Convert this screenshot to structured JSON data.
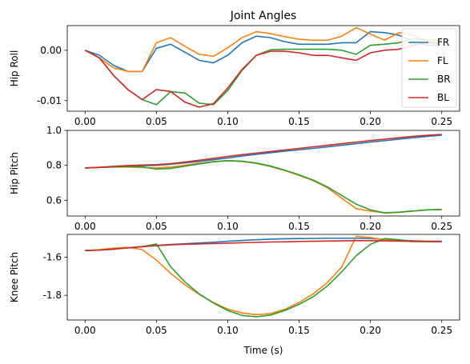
{
  "chart_data": {
    "type": "line",
    "title": "Joint Angles",
    "xlabel": "Time (s)",
    "legend": {
      "placement": "right",
      "entries": [
        "FR",
        "FL",
        "BR",
        "BL"
      ]
    },
    "colors": {
      "FR": "#1f77b4",
      "FL": "#ff7f0e",
      "BR": "#2ca02c",
      "BL": "#d62728"
    },
    "x": [
      0.0,
      0.01,
      0.02,
      0.03,
      0.04,
      0.05,
      0.06,
      0.07,
      0.08,
      0.09,
      0.1,
      0.11,
      0.12,
      0.13,
      0.14,
      0.15,
      0.16,
      0.17,
      0.18,
      0.19,
      0.2,
      0.21,
      0.22,
      0.23,
      0.24,
      0.25
    ],
    "xlim": [
      -0.0125,
      0.2625
    ],
    "xticks": [
      0.0,
      0.05,
      0.1,
      0.15,
      0.2,
      0.25
    ],
    "xtick_labels": [
      "0.00",
      "0.05",
      "0.10",
      "0.15",
      "0.20",
      "0.25"
    ],
    "subplots": [
      {
        "ylabel": "Hip Roll",
        "ylim": [
          -0.0121,
          0.0049
        ],
        "yticks": [
          -0.01,
          0.0
        ],
        "ytick_labels": [
          "-0.01",
          "0.00"
        ],
        "show_legend": true,
        "series": [
          {
            "name": "FR",
            "values": [
              0.0,
              -0.001,
              -0.003,
              -0.0042,
              -0.0042,
              0.0004,
              0.0012,
              -0.0004,
              -0.002,
              -0.0025,
              -0.001,
              0.0015,
              0.0028,
              0.0025,
              0.0017,
              0.0012,
              0.0012,
              0.0012,
              0.0015,
              0.0015,
              0.0037,
              0.0035,
              0.003,
              0.0018,
              0.001,
              0.001
            ]
          },
          {
            "name": "FL",
            "values": [
              0.0,
              -0.0015,
              -0.0035,
              -0.0042,
              -0.0042,
              0.0015,
              0.0025,
              0.0008,
              -0.0008,
              -0.0012,
              0.0005,
              0.0025,
              0.0037,
              0.0033,
              0.0027,
              0.0022,
              0.002,
              0.002,
              0.0028,
              0.0045,
              0.0032,
              0.002,
              0.0035,
              0.003,
              0.0018,
              0.001
            ]
          },
          {
            "name": "BR",
            "values": [
              0.0,
              -0.0015,
              -0.005,
              -0.0078,
              -0.0098,
              -0.0108,
              -0.0082,
              -0.0085,
              -0.0105,
              -0.0108,
              -0.008,
              -0.004,
              -0.001,
              0.0001,
              0.0002,
              0.0002,
              0.0002,
              0.0002,
              0.0,
              -0.0008,
              0.001,
              0.0012,
              0.0015,
              0.0023,
              0.002,
              0.002
            ]
          },
          {
            "name": "BL",
            "values": [
              0.0,
              -0.0015,
              -0.005,
              -0.0078,
              -0.0098,
              -0.0078,
              -0.0082,
              -0.0103,
              -0.0113,
              -0.0106,
              -0.0075,
              -0.0038,
              -0.001,
              -0.0002,
              -0.0002,
              -0.0005,
              -0.001,
              -0.001,
              -0.0015,
              -0.002,
              -0.0005,
              0.0,
              0.0002,
              0.001,
              0.0015,
              0.0015
            ]
          }
        ]
      },
      {
        "ylabel": "Hip Pitch",
        "ylim": [
          0.51,
          1.0
        ],
        "yticks": [
          0.6,
          0.8,
          1.0
        ],
        "ytick_labels": [
          "0.6",
          "0.8",
          "1.0"
        ],
        "show_legend": false,
        "series": [
          {
            "name": "FR",
            "values": [
              0.785,
              0.788,
              0.792,
              0.796,
              0.798,
              0.8,
              0.806,
              0.814,
              0.822,
              0.832,
              0.842,
              0.853,
              0.863,
              0.872,
              0.881,
              0.889,
              0.897,
              0.906,
              0.915,
              0.924,
              0.933,
              0.941,
              0.95,
              0.958,
              0.966,
              0.973
            ]
          },
          {
            "name": "FL",
            "values": [
              0.785,
              0.788,
              0.791,
              0.79,
              0.787,
              0.785,
              0.79,
              0.801,
              0.812,
              0.822,
              0.827,
              0.822,
              0.811,
              0.793,
              0.77,
              0.743,
              0.712,
              0.671,
              0.611,
              0.552,
              0.538,
              0.528,
              0.531,
              0.538,
              0.545,
              0.547
            ]
          },
          {
            "name": "BR",
            "values": [
              0.785,
              0.788,
              0.791,
              0.793,
              0.792,
              0.778,
              0.782,
              0.795,
              0.808,
              0.82,
              0.827,
              0.824,
              0.813,
              0.796,
              0.772,
              0.746,
              0.715,
              0.676,
              0.627,
              0.578,
              0.545,
              0.528,
              0.532,
              0.539,
              0.545,
              0.547
            ]
          },
          {
            "name": "BL",
            "values": [
              0.785,
              0.789,
              0.794,
              0.799,
              0.802,
              0.804,
              0.81,
              0.819,
              0.829,
              0.84,
              0.851,
              0.861,
              0.87,
              0.879,
              0.888,
              0.897,
              0.906,
              0.915,
              0.924,
              0.933,
              0.942,
              0.95,
              0.958,
              0.966,
              0.972,
              0.977
            ]
          }
        ]
      },
      {
        "ylabel": "Knee Pitch",
        "ylim": [
          -1.93,
          -1.48
        ],
        "yticks": [
          -1.8,
          -1.6
        ],
        "ytick_labels": [
          "-1.8",
          "-1.6"
        ],
        "show_legend": false,
        "series": [
          {
            "name": "FR",
            "values": [
              -1.565,
              -1.562,
              -1.556,
              -1.55,
              -1.544,
              -1.538,
              -1.533,
              -1.529,
              -1.525,
              -1.521,
              -1.516,
              -1.512,
              -1.508,
              -1.505,
              -1.503,
              -1.502,
              -1.501,
              -1.5,
              -1.5,
              -1.5,
              -1.502,
              -1.506,
              -1.51,
              -1.514,
              -1.516,
              -1.516
            ]
          },
          {
            "name": "FL",
            "values": [
              -1.565,
              -1.56,
              -1.552,
              -1.548,
              -1.56,
              -1.615,
              -1.685,
              -1.745,
              -1.795,
              -1.838,
              -1.873,
              -1.893,
              -1.902,
              -1.896,
              -1.874,
              -1.838,
              -1.792,
              -1.732,
              -1.65,
              -1.49,
              -1.497,
              -1.508,
              -1.515,
              -1.518,
              -1.518,
              -1.518
            ]
          },
          {
            "name": "BR",
            "values": [
              -1.565,
              -1.562,
              -1.556,
              -1.551,
              -1.545,
              -1.53,
              -1.65,
              -1.73,
              -1.793,
              -1.841,
              -1.88,
              -1.906,
              -1.913,
              -1.904,
              -1.88,
              -1.848,
              -1.807,
              -1.75,
              -1.676,
              -1.592,
              -1.532,
              -1.502,
              -1.508,
              -1.516,
              -1.518,
              -1.518
            ]
          },
          {
            "name": "BL",
            "values": [
              -1.565,
              -1.563,
              -1.558,
              -1.551,
              -1.545,
              -1.539,
              -1.535,
              -1.532,
              -1.53,
              -1.528,
              -1.526,
              -1.524,
              -1.522,
              -1.52,
              -1.519,
              -1.517,
              -1.516,
              -1.515,
              -1.514,
              -1.513,
              -1.513,
              -1.514,
              -1.515,
              -1.516,
              -1.517,
              -1.517
            ]
          }
        ]
      }
    ]
  }
}
